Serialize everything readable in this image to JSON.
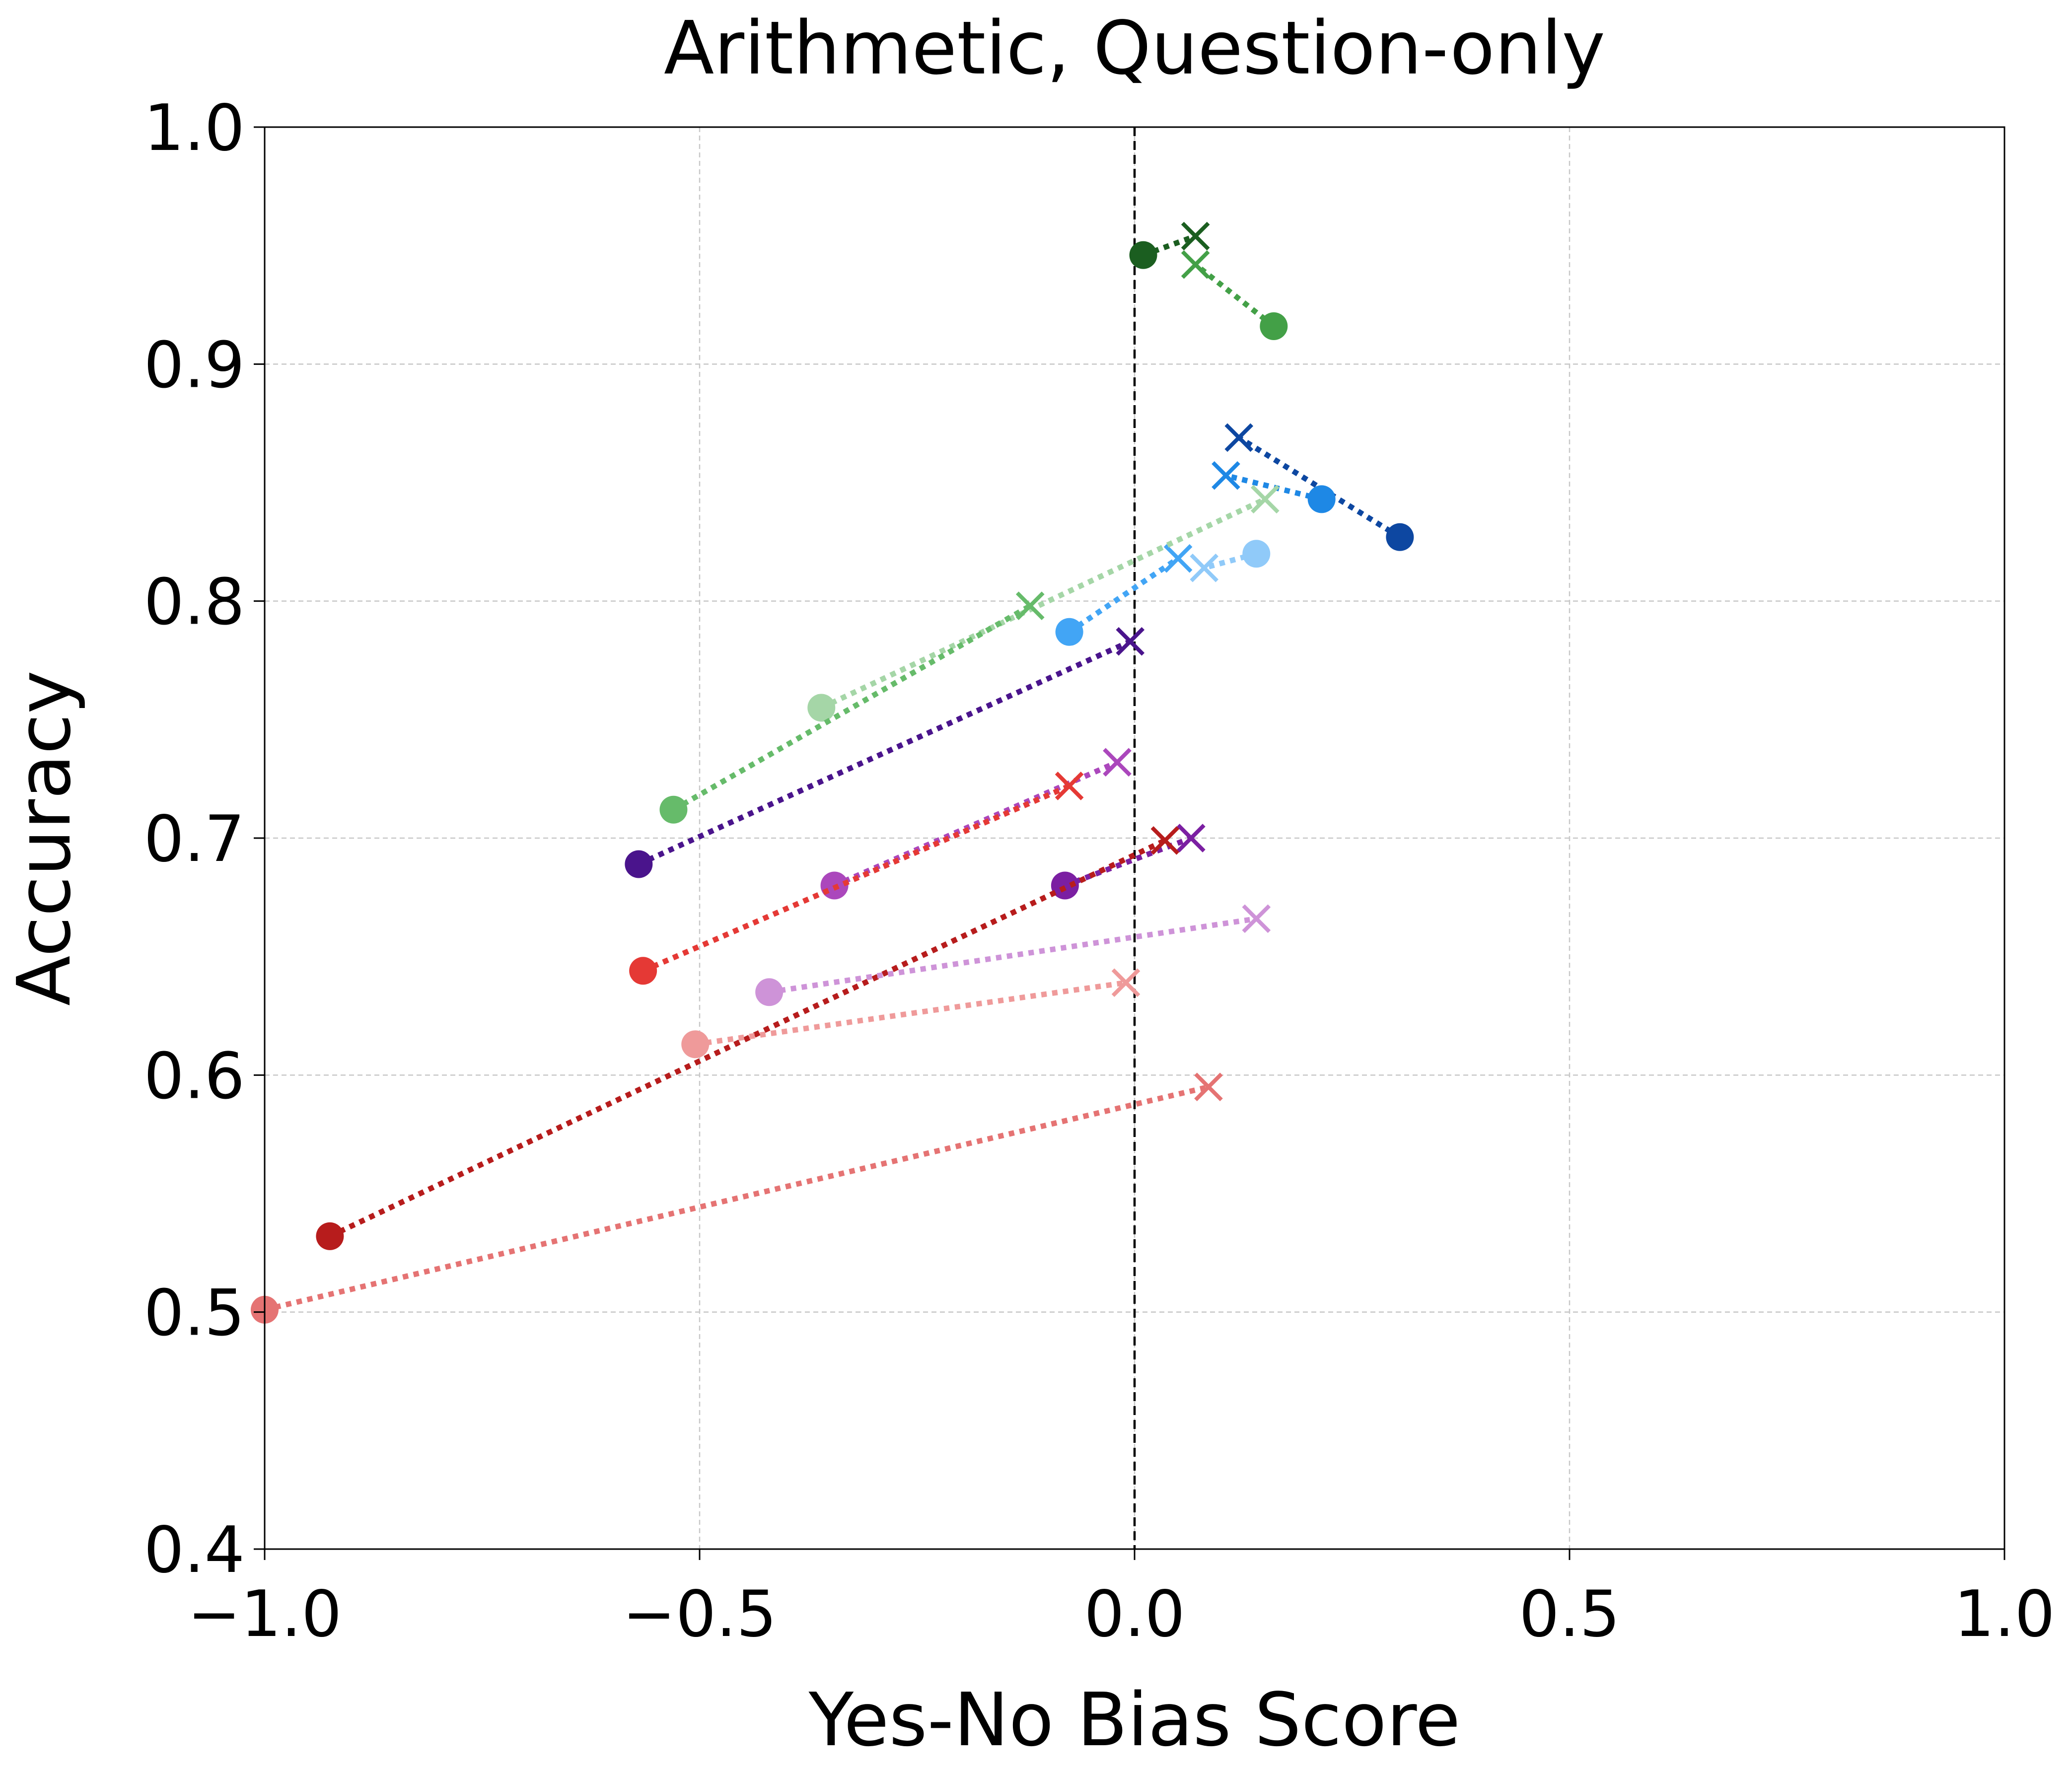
{
  "chart_data": {
    "type": "scatter",
    "title": "Arithmetic, Question-only",
    "xlabel": "Yes-No Bias Score",
    "ylabel": "Accuracy",
    "xlim": [
      -1.0,
      1.0
    ],
    "ylim": [
      0.4,
      1.0
    ],
    "xticks": [
      -1.0,
      -0.5,
      0.0,
      0.5,
      1.0
    ],
    "xtick_labels": [
      "−1.0",
      "−0.5",
      "0.0",
      "0.5",
      "1.0"
    ],
    "yticks": [
      0.4,
      0.5,
      0.6,
      0.7,
      0.8,
      0.9,
      1.0
    ],
    "ytick_labels": [
      "0.4",
      "0.5",
      "0.6",
      "0.7",
      "0.8",
      "0.9",
      "1.0"
    ],
    "grid": true,
    "reference_line": {
      "x": 0.0,
      "style": "dashed",
      "color": "#000000"
    },
    "marker_legend": {
      "start": "circle",
      "end": "cross"
    },
    "series": [
      {
        "color": "#1b5e20",
        "start": [
          0.01,
          0.946
        ],
        "end": [
          0.07,
          0.954
        ]
      },
      {
        "color": "#43a047",
        "start": [
          0.16,
          0.916
        ],
        "end": [
          0.07,
          0.942
        ]
      },
      {
        "color": "#0d47a1",
        "start": [
          0.305,
          0.827
        ],
        "end": [
          0.12,
          0.869
        ]
      },
      {
        "color": "#1e88e5",
        "start": [
          0.215,
          0.843
        ],
        "end": [
          0.105,
          0.853
        ]
      },
      {
        "color": "#90caf9",
        "start": [
          0.14,
          0.82
        ],
        "end": [
          0.08,
          0.814
        ]
      },
      {
        "color": "#42a5f5",
        "start": [
          -0.075,
          0.787
        ],
        "end": [
          0.05,
          0.818
        ]
      },
      {
        "color": "#a5d6a7",
        "start": [
          -0.36,
          0.755
        ],
        "end": [
          0.15,
          0.843
        ]
      },
      {
        "color": "#66bb6a",
        "start": [
          -0.53,
          0.712
        ],
        "end": [
          -0.12,
          0.798
        ]
      },
      {
        "color": "#4a148c",
        "start": [
          -0.57,
          0.689
        ],
        "end": [
          -0.005,
          0.783
        ]
      },
      {
        "color": "#ab47bc",
        "start": [
          -0.345,
          0.68
        ],
        "end": [
          -0.02,
          0.732
        ]
      },
      {
        "color": "#e53935",
        "start": [
          -0.565,
          0.644
        ],
        "end": [
          -0.075,
          0.722
        ]
      },
      {
        "color": "#7b1fa2",
        "start": [
          -0.08,
          0.68
        ],
        "end": [
          0.065,
          0.7
        ]
      },
      {
        "color": "#b71c1c",
        "start": [
          -0.925,
          0.532
        ],
        "end": [
          0.035,
          0.699
        ]
      },
      {
        "color": "#ce93d8",
        "start": [
          -0.42,
          0.635
        ],
        "end": [
          0.14,
          0.666
        ]
      },
      {
        "color": "#ef9a9a",
        "start": [
          -0.505,
          0.613
        ],
        "end": [
          -0.01,
          0.639
        ]
      },
      {
        "color": "#e57373",
        "start": [
          -1.0,
          0.501
        ],
        "end": [
          0.085,
          0.595
        ]
      }
    ]
  }
}
